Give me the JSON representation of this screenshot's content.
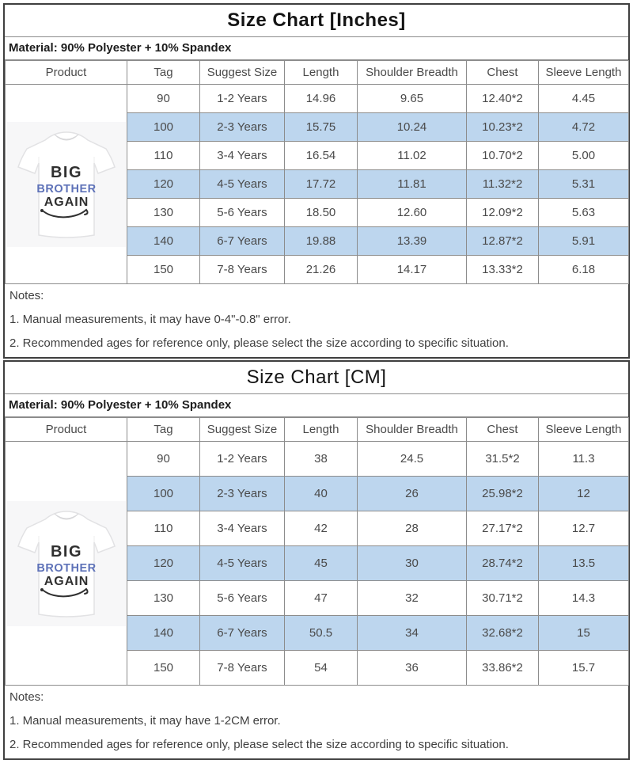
{
  "colors": {
    "stripe_blue": "#BDD6EE",
    "grid_border": "#8c8c8c",
    "outer_border": "#3f3f3f",
    "body_text": "#4a4a4a",
    "print_blue": "#5e72b8",
    "print_black": "#303030"
  },
  "product_image": {
    "name": "kids-white-t-shirt",
    "line1": "BIG",
    "line2": "BROTHER",
    "line3": "AGAIN"
  },
  "tables": [
    {
      "title": "Size Chart [Inches]",
      "title_bold": true,
      "material": "Material: 90% Polyester + 10% Spandex",
      "columns": [
        "Product",
        "Tag",
        "Suggest Size",
        "Length",
        "Shoulder Breadth",
        "Chest",
        "Sleeve Length"
      ],
      "rows": [
        [
          "90",
          "1-2 Years",
          "14.96",
          "9.65",
          "12.40*2",
          "4.45"
        ],
        [
          "100",
          "2-3 Years",
          "15.75",
          "10.24",
          "10.23*2",
          "4.72"
        ],
        [
          "110",
          "3-4 Years",
          "16.54",
          "11.02",
          "10.70*2",
          "5.00"
        ],
        [
          "120",
          "4-5 Years",
          "17.72",
          "11.81",
          "11.32*2",
          "5.31"
        ],
        [
          "130",
          "5-6 Years",
          "18.50",
          "12.60",
          "12.09*2",
          "5.63"
        ],
        [
          "140",
          "6-7 Years",
          "19.88",
          "13.39",
          "12.87*2",
          "5.91"
        ],
        [
          "150",
          "7-8 Years",
          "21.26",
          "14.17",
          "13.33*2",
          "6.18"
        ]
      ],
      "notes_label": "Notes:",
      "notes": [
        "1. Manual measurements, it may have 0-4\"-0.8\" error.",
        "2. Recommended ages for reference only, please select the size according to specific situation."
      ]
    },
    {
      "title": "Size Chart [CM]",
      "title_bold": false,
      "material": "Material: 90% Polyester + 10% Spandex",
      "columns": [
        "Product",
        "Tag",
        "Suggest Size",
        "Length",
        "Shoulder Breadth",
        "Chest",
        "Sleeve Length"
      ],
      "rows": [
        [
          "90",
          "1-2 Years",
          "38",
          "24.5",
          "31.5*2",
          "11.3"
        ],
        [
          "100",
          "2-3 Years",
          "40",
          "26",
          "25.98*2",
          "12"
        ],
        [
          "110",
          "3-4 Years",
          "42",
          "28",
          "27.17*2",
          "12.7"
        ],
        [
          "120",
          "4-5 Years",
          "45",
          "30",
          "28.74*2",
          "13.5"
        ],
        [
          "130",
          "5-6 Years",
          "47",
          "32",
          "30.71*2",
          "14.3"
        ],
        [
          "140",
          "6-7 Years",
          "50.5",
          "34",
          "32.68*2",
          "15"
        ],
        [
          "150",
          "7-8 Years",
          "54",
          "36",
          "33.86*2",
          "15.7"
        ]
      ],
      "notes_label": "Notes:",
      "notes": [
        "1. Manual measurements, it may have 1-2CM error.",
        "2. Recommended ages for reference only, please select the size according to specific situation."
      ]
    }
  ]
}
